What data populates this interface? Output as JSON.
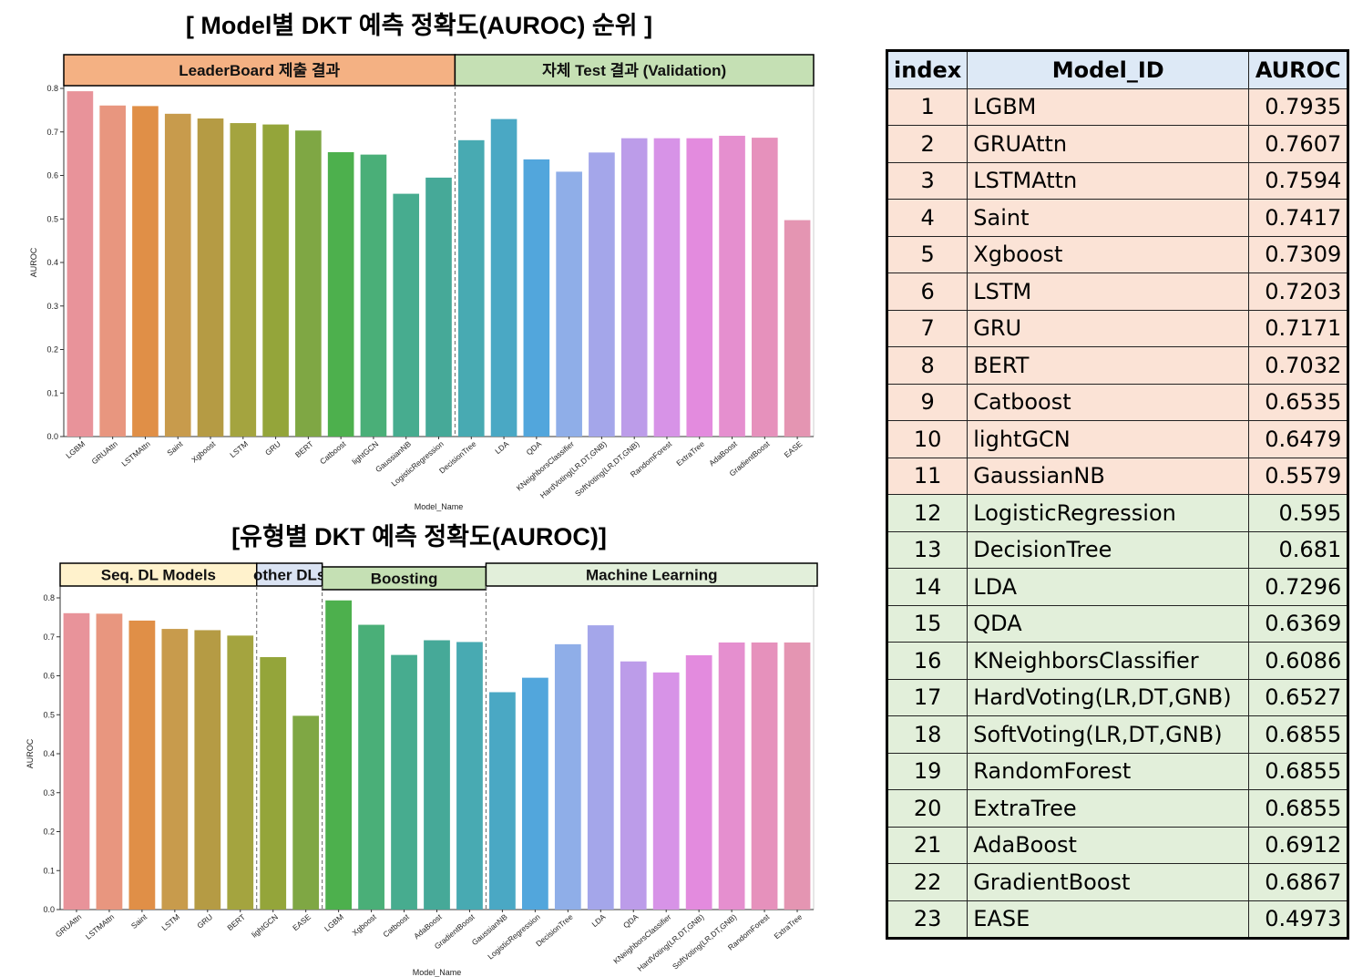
{
  "title_top": "[ Model별 DKT 예측 정확도(AUROC) 순위 ]",
  "title_bottom": "[유형별 DKT 예측 정확도(AUROC)]",
  "colors": {
    "bars": [
      "#e8939a",
      "#e8967f",
      "#e08f47",
      "#c89b4c",
      "#b59b44",
      "#a4a43f",
      "#94a53a",
      "#7fa744",
      "#4db04d",
      "#4aaf78",
      "#47ac8f",
      "#46a998",
      "#48aab2",
      "#4aa8c4",
      "#52a6dc",
      "#8faee8",
      "#a4a6ea",
      "#bc9ce9",
      "#d793e7",
      "#e38bde",
      "#e58fcf",
      "#e691bc",
      "#e495b2"
    ],
    "leaderboard_header": "#f4b183",
    "validation_header": "#c5e0b4",
    "seqdl_header": "#fff2cc",
    "otherdl_header": "#dae3f3",
    "boosting_header": "#c5e0b4",
    "ml_header": "#e2efda",
    "table_header": "#dde9f6",
    "table_leaderboard_rows": "#fbe3d6",
    "table_validation_rows": "#e2efda"
  },
  "chart_data": [
    {
      "type": "bar",
      "title": "[ Model별 DKT 예측 정확도(AUROC) 순위 ]",
      "xlabel": "Model_Name",
      "ylabel": "AUROC",
      "ylim": [
        0,
        0.8
      ],
      "yticks": [
        "0.0",
        "0.1",
        "0.2",
        "0.3",
        "0.4",
        "0.5",
        "0.6",
        "0.7",
        "0.8"
      ],
      "categories": [
        "LGBM",
        "GRUAttn",
        "LSTMAttn",
        "Saint",
        "Xgboost",
        "LSTM",
        "GRU",
        "BERT",
        "Catboost",
        "lightGCN",
        "GaussianNB",
        "LogisticRegression",
        "DecisionTree",
        "LDA",
        "QDA",
        "KNeighborsClassifier",
        "HardVoting(LR,DT,GNB)",
        "SoftVoting(LR,DT,GNB)",
        "RandomForest",
        "ExtraTree",
        "AdaBoost",
        "GradientBoost",
        "EASE"
      ],
      "values": [
        0.7935,
        0.7607,
        0.7594,
        0.7417,
        0.7309,
        0.7203,
        0.7171,
        0.7032,
        0.6535,
        0.6479,
        0.5579,
        0.595,
        0.681,
        0.7296,
        0.6369,
        0.6086,
        0.6527,
        0.6855,
        0.6855,
        0.6855,
        0.6912,
        0.6867,
        0.4973
      ],
      "groups": [
        {
          "label": "LeaderBoard 제출 결과",
          "start": 0,
          "end": 11
        },
        {
          "label": "자체 Test 결과 (Validation)",
          "start": 12,
          "end": 22
        }
      ]
    },
    {
      "type": "bar",
      "title": "[유형별 DKT 예측 정확도(AUROC)]",
      "xlabel": "Model_Name",
      "ylabel": "AUROC",
      "ylim": [
        0,
        0.8
      ],
      "yticks": [
        "0.0",
        "0.1",
        "0.2",
        "0.3",
        "0.4",
        "0.5",
        "0.6",
        "0.7",
        "0.8"
      ],
      "categories": [
        "GRUAttn",
        "LSTMAttn",
        "Saint",
        "LSTM",
        "GRU",
        "BERT",
        "lightGCN",
        "EASE",
        "LGBM",
        "Xgboost",
        "Catboost",
        "AdaBoost",
        "GradientBoost",
        "GaussianNB",
        "LogisticRegression",
        "DecisionTree",
        "LDA",
        "QDA",
        "KNeighborsClassifier",
        "HardVoting(LR,DT,GNB)",
        "SoftVoting(LR,DT,GNB)",
        "RandomForest",
        "ExtraTree"
      ],
      "values": [
        0.7607,
        0.7594,
        0.7417,
        0.7203,
        0.7171,
        0.7032,
        0.6479,
        0.4973,
        0.7935,
        0.7309,
        0.6535,
        0.6912,
        0.6867,
        0.5579,
        0.595,
        0.681,
        0.7296,
        0.6369,
        0.6086,
        0.6527,
        0.6855,
        0.6855,
        0.6855
      ],
      "groups": [
        {
          "label": "Seq. DL Models",
          "start": 0,
          "end": 5
        },
        {
          "label": "other DLs",
          "start": 6,
          "end": 7
        },
        {
          "label": "Boosting",
          "start": 8,
          "end": 12
        },
        {
          "label": "Machine Learning",
          "start": 13,
          "end": 22
        }
      ]
    }
  ],
  "table": {
    "headers": [
      "index",
      "Model_ID",
      "AUROC"
    ],
    "rows": [
      [
        "1",
        "LGBM",
        "0.7935"
      ],
      [
        "2",
        "GRUAttn",
        "0.7607"
      ],
      [
        "3",
        "LSTMAttn",
        "0.7594"
      ],
      [
        "4",
        "Saint",
        "0.7417"
      ],
      [
        "5",
        "Xgboost",
        "0.7309"
      ],
      [
        "6",
        "LSTM",
        "0.7203"
      ],
      [
        "7",
        "GRU",
        "0.7171"
      ],
      [
        "8",
        "BERT",
        "0.7032"
      ],
      [
        "9",
        "Catboost",
        "0.6535"
      ],
      [
        "10",
        "lightGCN",
        "0.6479"
      ],
      [
        "11",
        "GaussianNB",
        "0.5579"
      ],
      [
        "12",
        "LogisticRegression",
        "0.595"
      ],
      [
        "13",
        "DecisionTree",
        "0.681"
      ],
      [
        "14",
        "LDA",
        "0.7296"
      ],
      [
        "15",
        "QDA",
        "0.6369"
      ],
      [
        "16",
        "KNeighborsClassifier",
        "0.6086"
      ],
      [
        "17",
        "HardVoting(LR,DT,GNB)",
        "0.6527"
      ],
      [
        "18",
        "SoftVoting(LR,DT,GNB)",
        "0.6855"
      ],
      [
        "19",
        "RandomForest",
        "0.6855"
      ],
      [
        "20",
        "ExtraTree",
        "0.6855"
      ],
      [
        "21",
        "AdaBoost",
        "0.6912"
      ],
      [
        "22",
        "GradientBoost",
        "0.6867"
      ],
      [
        "23",
        "EASE",
        "0.4973"
      ]
    ]
  }
}
